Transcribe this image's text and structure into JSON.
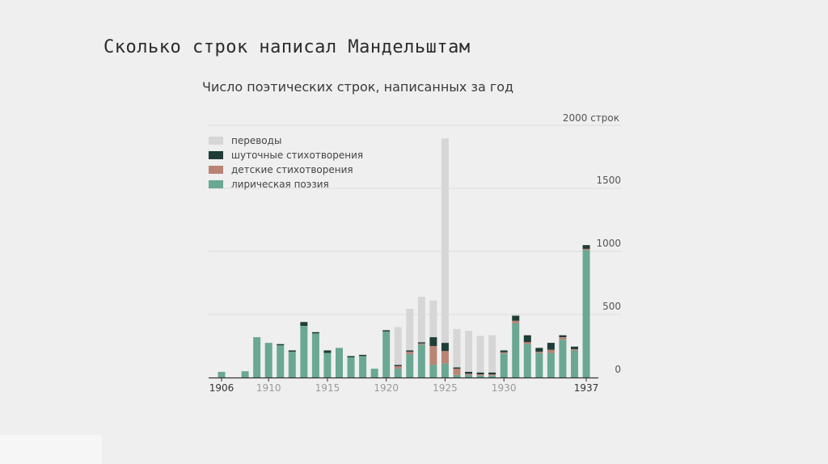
{
  "slide": {
    "title": "Сколько строк написал Мандельштам"
  },
  "chart_data": {
    "type": "bar",
    "stacked": true,
    "title": "Число поэтических строк, написанных за год",
    "unit_label": "2000 строк",
    "y_ticks": [
      "1500",
      "1000",
      "500",
      "0"
    ],
    "y_tick_values": [
      1500,
      1000,
      500,
      0
    ],
    "ylim": [
      0,
      2000
    ],
    "grid": true,
    "legend_position": "top-left",
    "x_tick_labels": [
      {
        "year": 1906,
        "label": "1906"
      },
      {
        "year": 1910,
        "label": "1910"
      },
      {
        "year": 1915,
        "label": "1915"
      },
      {
        "year": 1920,
        "label": "1920"
      },
      {
        "year": 1925,
        "label": "1925"
      },
      {
        "year": 1930,
        "label": "1930"
      },
      {
        "year": 1937,
        "label": "1937"
      }
    ],
    "categories": [
      1906,
      1907,
      1908,
      1909,
      1910,
      1911,
      1912,
      1913,
      1914,
      1915,
      1916,
      1917,
      1918,
      1919,
      1920,
      1921,
      1922,
      1923,
      1924,
      1925,
      1926,
      1927,
      1928,
      1929,
      1930,
      1931,
      1932,
      1933,
      1934,
      1935,
      1936,
      1937
    ],
    "series": [
      {
        "name": "лирическая поэзия",
        "color": "#6aa893",
        "values": [
          45,
          0,
          50,
          320,
          275,
          255,
          205,
          410,
          350,
          195,
          235,
          160,
          170,
          70,
          365,
          70,
          185,
          260,
          100,
          110,
          20,
          20,
          15,
          15,
          190,
          430,
          265,
          195,
          195,
          300,
          215,
          1010
        ]
      },
      {
        "name": "детские стихотворения",
        "color": "#b98474",
        "values": [
          0,
          0,
          0,
          0,
          0,
          0,
          0,
          0,
          0,
          0,
          0,
          0,
          0,
          0,
          0,
          20,
          20,
          10,
          150,
          100,
          50,
          10,
          10,
          10,
          10,
          20,
          15,
          10,
          25,
          20,
          10,
          10
        ]
      },
      {
        "name": "шуточные стихотворения",
        "color": "#1e3d36",
        "values": [
          0,
          0,
          0,
          0,
          0,
          10,
          10,
          30,
          10,
          20,
          0,
          10,
          10,
          0,
          10,
          10,
          10,
          10,
          70,
          65,
          10,
          15,
          15,
          15,
          15,
          40,
          55,
          30,
          55,
          15,
          20,
          30
        ]
      },
      {
        "name": "переводы",
        "color": "#d6d6d6",
        "values": [
          0,
          0,
          0,
          0,
          0,
          0,
          0,
          0,
          0,
          0,
          0,
          0,
          0,
          0,
          0,
          300,
          330,
          360,
          290,
          1620,
          305,
          325,
          290,
          295,
          0,
          10,
          0,
          0,
          0,
          0,
          0,
          0
        ]
      }
    ],
    "legend_order": [
      "переводы",
      "шуточные стихотворения",
      "детские стихотворения",
      "лирическая поэзия"
    ]
  }
}
